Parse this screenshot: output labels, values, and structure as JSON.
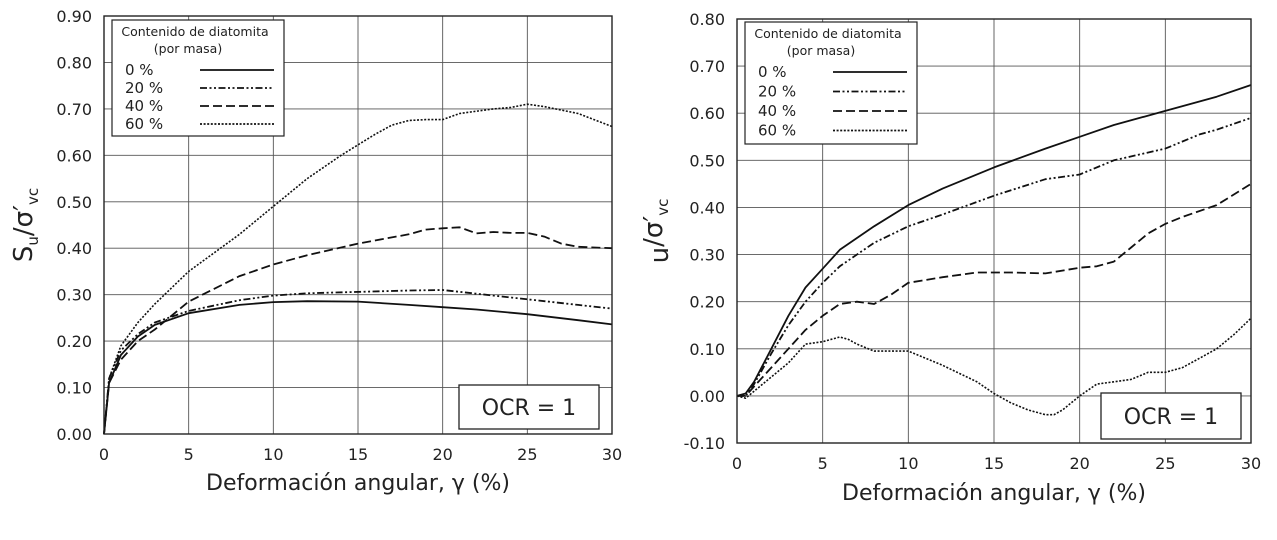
{
  "chart_data": [
    {
      "type": "line",
      "xlabel": "Deformación angular, γ  (%)",
      "ylabel": {
        "main": "S",
        "sub1": "u",
        "slash": "/σ′",
        "sub2": "vc"
      },
      "xlim": [
        0,
        30
      ],
      "ylim": [
        0,
        0.9
      ],
      "xticks": [
        "0",
        "5",
        "10",
        "15",
        "20",
        "25",
        "30"
      ],
      "yticks": [
        "0.00",
        "0.10",
        "0.20",
        "0.30",
        "0.40",
        "0.50",
        "0.60",
        "0.70",
        "0.80",
        "0.90"
      ],
      "grid": true,
      "legend_position": "top-left",
      "legend_title": [
        "Contenido de diatomita",
        "(por masa)"
      ],
      "annotation": "OCR = 1",
      "series": [
        {
          "name": "0 %",
          "dash": "solid",
          "x": [
            0,
            0.3,
            1,
            2,
            3,
            5,
            8,
            10,
            12,
            15,
            18,
            20,
            22,
            25,
            28,
            30
          ],
          "y": [
            0,
            0.11,
            0.17,
            0.21,
            0.235,
            0.26,
            0.278,
            0.284,
            0.286,
            0.285,
            0.278,
            0.273,
            0.268,
            0.258,
            0.245,
            0.236
          ]
        },
        {
          "name": "20 %",
          "dash": "dashdot",
          "x": [
            0,
            0.3,
            1,
            2,
            3,
            5,
            8,
            10,
            12,
            15,
            18,
            20,
            22,
            25,
            28,
            30
          ],
          "y": [
            0,
            0.12,
            0.18,
            0.215,
            0.24,
            0.265,
            0.288,
            0.298,
            0.303,
            0.306,
            0.309,
            0.31,
            0.302,
            0.29,
            0.278,
            0.27
          ]
        },
        {
          "name": "40 %",
          "dash": "dashed",
          "x": [
            0,
            0.3,
            1,
            2,
            3,
            5,
            8,
            10,
            12,
            15,
            18,
            19,
            20,
            21,
            22,
            23,
            24,
            25,
            26,
            27,
            28,
            30
          ],
          "y": [
            0,
            0.11,
            0.16,
            0.2,
            0.225,
            0.285,
            0.34,
            0.365,
            0.385,
            0.41,
            0.43,
            0.44,
            0.443,
            0.445,
            0.432,
            0.435,
            0.433,
            0.433,
            0.425,
            0.41,
            0.403,
            0.4
          ]
        },
        {
          "name": "60 %",
          "dash": "dotted",
          "x": [
            0,
            0.3,
            1,
            2,
            3,
            5,
            8,
            10,
            12,
            14,
            16,
            17,
            18,
            19,
            20,
            21,
            22,
            23,
            24,
            25,
            26,
            28,
            30
          ],
          "y": [
            0,
            0.12,
            0.19,
            0.24,
            0.28,
            0.35,
            0.43,
            0.49,
            0.55,
            0.6,
            0.645,
            0.665,
            0.675,
            0.677,
            0.677,
            0.69,
            0.695,
            0.7,
            0.703,
            0.71,
            0.705,
            0.69,
            0.662
          ]
        }
      ]
    },
    {
      "type": "line",
      "xlabel": "Deformación angular, γ  (%)",
      "ylabel": {
        "main": "u",
        "sub1": "",
        "slash": "/σ′",
        "sub2": "vc"
      },
      "xlim": [
        0,
        30
      ],
      "ylim": [
        -0.1,
        0.8
      ],
      "xticks": [
        "0",
        "5",
        "10",
        "15",
        "20",
        "25",
        "30"
      ],
      "yticks": [
        "-0.10",
        "0.00",
        "0.10",
        "0.20",
        "0.30",
        "0.40",
        "0.50",
        "0.60",
        "0.70",
        "0.80"
      ],
      "grid": true,
      "legend_position": "top-left",
      "legend_title": [
        "Contenido de diatomita",
        "(por masa)"
      ],
      "annotation": "OCR = 1",
      "series": [
        {
          "name": "0 %",
          "dash": "solid",
          "x": [
            0,
            0.5,
            1,
            2,
            3,
            4,
            5,
            6,
            8,
            10,
            12,
            15,
            18,
            20,
            22,
            25,
            28,
            30
          ],
          "y": [
            0,
            0.005,
            0.03,
            0.1,
            0.17,
            0.23,
            0.27,
            0.31,
            0.36,
            0.405,
            0.44,
            0.485,
            0.525,
            0.55,
            0.575,
            0.605,
            0.635,
            0.66
          ]
        },
        {
          "name": "20 %",
          "dash": "dashdot",
          "x": [
            0,
            0.5,
            1,
            2,
            3,
            4,
            5,
            6,
            8,
            10,
            12,
            15,
            18,
            20,
            22,
            25,
            27,
            28,
            30
          ],
          "y": [
            0,
            0.0,
            0.025,
            0.09,
            0.15,
            0.2,
            0.24,
            0.275,
            0.325,
            0.36,
            0.385,
            0.425,
            0.46,
            0.47,
            0.5,
            0.525,
            0.555,
            0.565,
            0.59
          ]
        },
        {
          "name": "40 %",
          "dash": "dashed",
          "x": [
            0,
            0.5,
            1,
            2,
            3,
            4,
            5,
            6,
            7,
            8,
            9,
            10,
            12,
            14,
            16,
            18,
            20,
            21,
            22,
            23,
            24,
            25,
            26,
            28,
            30
          ],
          "y": [
            0,
            0.0,
            0.02,
            0.06,
            0.1,
            0.14,
            0.17,
            0.195,
            0.2,
            0.195,
            0.215,
            0.24,
            0.252,
            0.262,
            0.262,
            0.26,
            0.272,
            0.275,
            0.285,
            0.315,
            0.345,
            0.365,
            0.38,
            0.405,
            0.45
          ]
        },
        {
          "name": "60 %",
          "dash": "dotted",
          "x": [
            0,
            0.5,
            1,
            2,
            3,
            4,
            5,
            6,
            6.5,
            7,
            8,
            10,
            12,
            14,
            15,
            16,
            17,
            18,
            18.5,
            19,
            20,
            21,
            22,
            23,
            24,
            25,
            26,
            27,
            28,
            29,
            30
          ],
          "y": [
            0,
            -0.005,
            0.01,
            0.04,
            0.07,
            0.11,
            0.115,
            0.125,
            0.12,
            0.11,
            0.095,
            0.095,
            0.065,
            0.03,
            0.005,
            -0.015,
            -0.03,
            -0.04,
            -0.04,
            -0.03,
            0.0,
            0.025,
            0.03,
            0.035,
            0.05,
            0.05,
            0.06,
            0.08,
            0.1,
            0.13,
            0.165
          ]
        }
      ]
    }
  ]
}
